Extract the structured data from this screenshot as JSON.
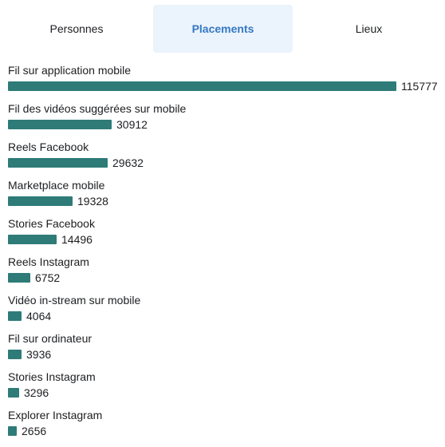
{
  "tabs": [
    {
      "label": "Personnes",
      "active": false
    },
    {
      "label": "Placements",
      "active": true
    },
    {
      "label": "Lieux",
      "active": false
    }
  ],
  "colors": {
    "bar": "#2e7b78",
    "active_tab_bg": "#ebf3fc",
    "active_tab_text": "#3578c4"
  },
  "chart_data": {
    "type": "bar",
    "orientation": "horizontal",
    "categories": [
      "Fil sur application mobile",
      "Fil des vidéos suggérées sur mobile",
      "Reels Facebook",
      "Marketplace mobile",
      "Stories Facebook",
      "Reels Instagram",
      "Vidéo in-stream sur mobile",
      "Fil sur ordinateur",
      "Stories Instagram",
      "Explorer Instagram"
    ],
    "values": [
      115777,
      30912,
      29632,
      19328,
      14496,
      6752,
      4064,
      3936,
      3296,
      2656
    ],
    "grid": false,
    "legend": "none"
  }
}
